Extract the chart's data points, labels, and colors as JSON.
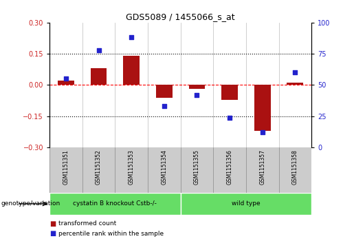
{
  "title": "GDS5089 / 1455066_s_at",
  "samples": [
    "GSM1151351",
    "GSM1151352",
    "GSM1151353",
    "GSM1151354",
    "GSM1151355",
    "GSM1151356",
    "GSM1151357",
    "GSM1151358"
  ],
  "transformed_count": [
    0.02,
    0.08,
    0.14,
    -0.06,
    -0.02,
    -0.07,
    -0.22,
    0.01
  ],
  "percentile_rank": [
    55,
    78,
    88,
    33,
    42,
    24,
    12,
    60
  ],
  "bar_color": "#aa1111",
  "dot_color": "#2222cc",
  "ylim_left": [
    -0.3,
    0.3
  ],
  "ylim_right": [
    0,
    100
  ],
  "yticks_left": [
    -0.3,
    -0.15,
    0.0,
    0.15,
    0.3
  ],
  "yticks_right": [
    0,
    25,
    50,
    75,
    100
  ],
  "hlines": [
    0.15,
    -0.15
  ],
  "group1_label": "cystatin B knockout Cstb-/-",
  "group1_count": 4,
  "group2_label": "wild type",
  "group2_count": 4,
  "group_color": "#66dd66",
  "genotype_label": "genotype/variation",
  "legend1": "transformed count",
  "legend2": "percentile rank within the sample",
  "background_color": "#ffffff",
  "tick_label_area_color": "#cccccc"
}
